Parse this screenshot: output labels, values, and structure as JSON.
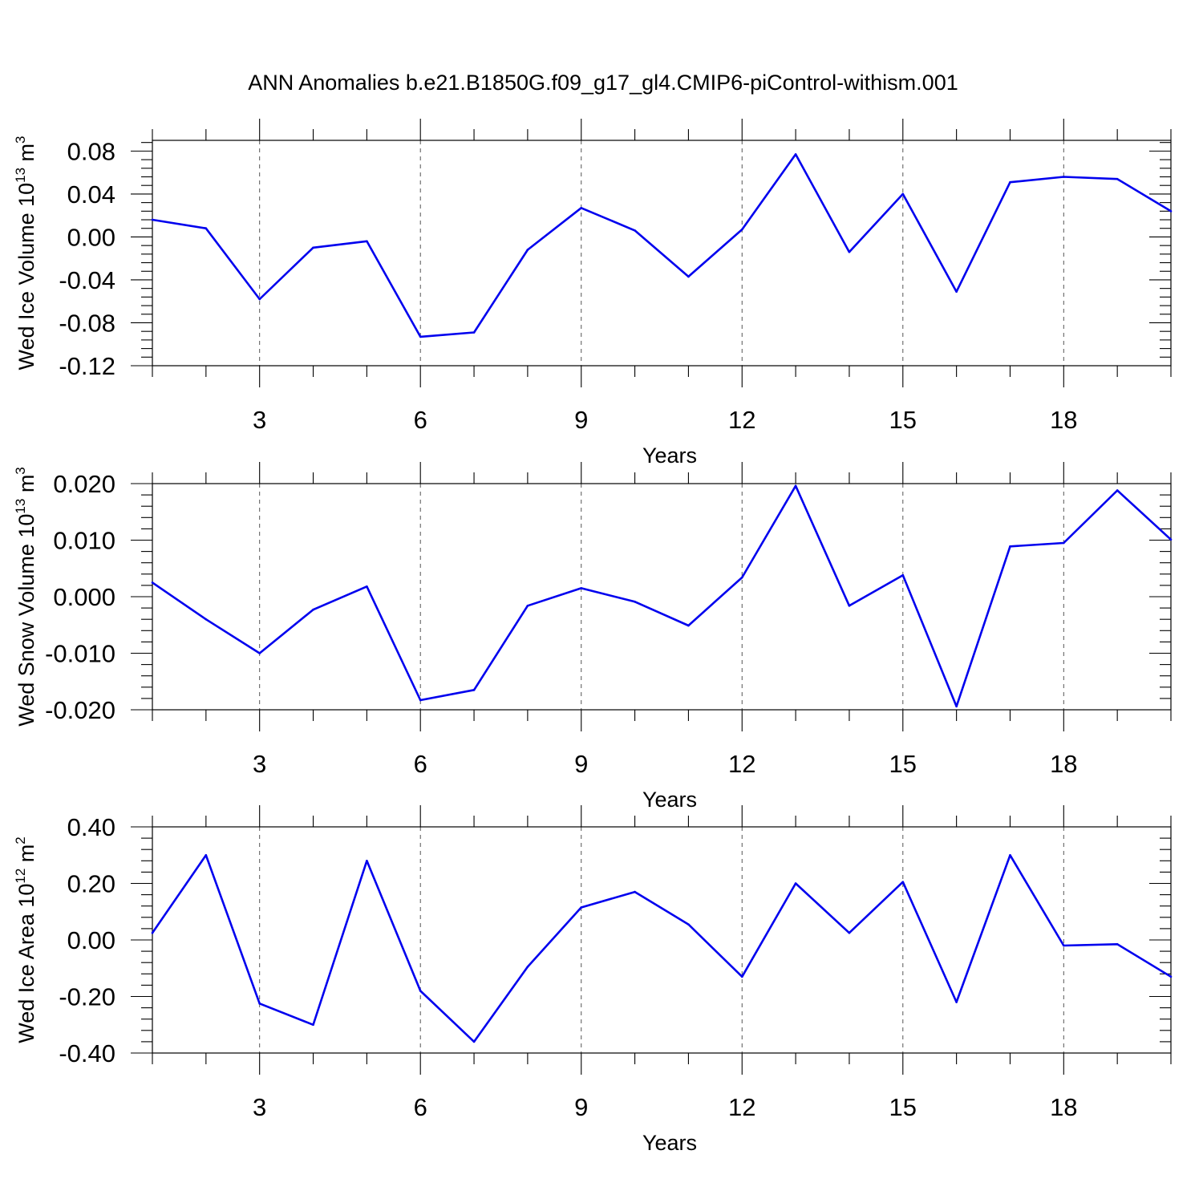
{
  "title": "ANN Anomalies b.e21.B1850G.f09_g17_gl4.CMIP6-piControl-withism.001",
  "colors": {
    "line": "#0000ee",
    "axis": "#000000",
    "grid": "#555555"
  },
  "chart_data": [
    {
      "type": "line",
      "ylabel": {
        "main": "Wed Ice Volume 10",
        "sup": "13",
        "unit": " m",
        "unit_sup": "3"
      },
      "xlabel": "Years",
      "xlim": [
        1,
        20
      ],
      "ylim": [
        -0.12,
        0.09
      ],
      "x_ticks": [
        3,
        6,
        9,
        12,
        15,
        18
      ],
      "y_ticks": [
        -0.12,
        -0.08,
        -0.04,
        0.0,
        0.04,
        0.08
      ],
      "y_tick_labels": [
        "-0.12",
        "-0.08",
        "-0.04",
        "0.00",
        "0.04",
        "0.08"
      ],
      "grid": "dashed vertical at x ticks",
      "x": [
        1,
        2,
        3,
        4,
        5,
        6,
        7,
        8,
        9,
        10,
        11,
        12,
        13,
        14,
        15,
        16,
        17,
        18,
        19,
        20
      ],
      "series": [
        {
          "values": [
            0.016,
            0.008,
            -0.058,
            -0.01,
            -0.004,
            -0.093,
            -0.089,
            -0.012,
            0.027,
            0.006,
            -0.037,
            0.007,
            0.077,
            -0.014,
            0.04,
            -0.051,
            0.051,
            0.056,
            0.054,
            0.024
          ]
        }
      ]
    },
    {
      "type": "line",
      "ylabel": {
        "main": "Wed Snow Volume 10",
        "sup": "13",
        "unit": " m",
        "unit_sup": "3"
      },
      "xlabel": "Years",
      "xlim": [
        1,
        20
      ],
      "ylim": [
        -0.02,
        0.02
      ],
      "x_ticks": [
        3,
        6,
        9,
        12,
        15,
        18
      ],
      "y_ticks": [
        -0.02,
        -0.01,
        0.0,
        0.01,
        0.02
      ],
      "y_tick_labels": [
        "-0.020",
        "-0.010",
        "0.000",
        "0.010",
        "0.020"
      ],
      "grid": "dashed vertical at x ticks",
      "x": [
        1,
        2,
        3,
        4,
        5,
        6,
        7,
        8,
        9,
        10,
        11,
        12,
        13,
        14,
        15,
        16,
        17,
        18,
        19,
        20
      ],
      "series": [
        {
          "values": [
            0.0025,
            -0.004,
            -0.01,
            -0.0023,
            0.0018,
            -0.0183,
            -0.0165,
            -0.0016,
            0.0015,
            -0.0009,
            -0.0051,
            0.0034,
            0.0196,
            -0.0016,
            0.0038,
            -0.0194,
            0.0089,
            0.0095,
            0.0188,
            0.0101
          ]
        }
      ]
    },
    {
      "type": "line",
      "ylabel": {
        "main": "Wed Ice Area 10",
        "sup": "12",
        "unit": " m",
        "unit_sup": "2"
      },
      "xlabel": "Years",
      "xlim": [
        1,
        20
      ],
      "ylim": [
        -0.4,
        0.4
      ],
      "x_ticks": [
        3,
        6,
        9,
        12,
        15,
        18
      ],
      "y_ticks": [
        -0.4,
        -0.2,
        0.0,
        0.2,
        0.4
      ],
      "y_tick_labels": [
        "-0.40",
        "-0.20",
        "0.00",
        "0.20",
        "0.40"
      ],
      "grid": "dashed vertical at x ticks",
      "x": [
        1,
        2,
        3,
        4,
        5,
        6,
        7,
        8,
        9,
        10,
        11,
        12,
        13,
        14,
        15,
        16,
        17,
        18,
        19,
        20
      ],
      "series": [
        {
          "values": [
            0.025,
            0.3,
            -0.225,
            -0.3,
            0.28,
            -0.18,
            -0.36,
            -0.095,
            0.115,
            0.17,
            0.055,
            -0.13,
            0.2,
            0.025,
            0.205,
            -0.22,
            0.3,
            -0.02,
            -0.015,
            -0.13
          ]
        }
      ]
    }
  ]
}
